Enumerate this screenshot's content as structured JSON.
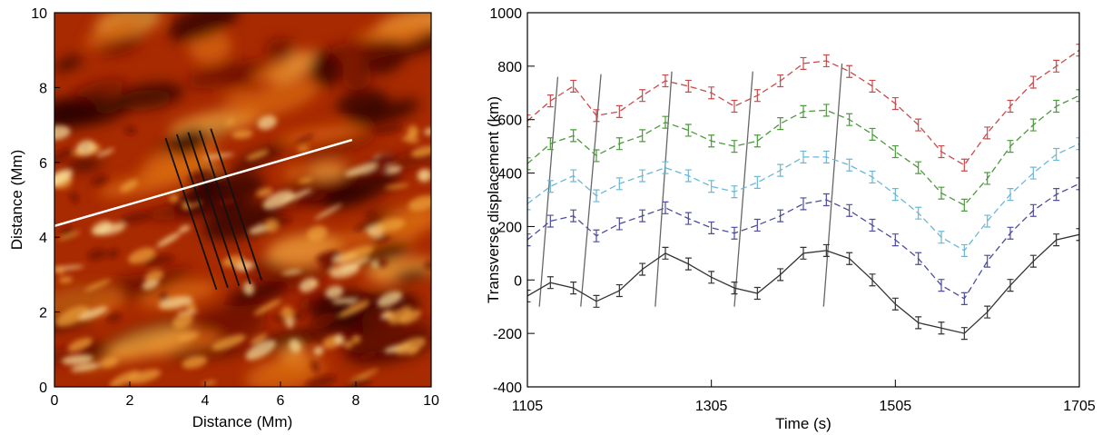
{
  "chart_data": [
    {
      "type": "heatmap",
      "xlabel": "Distance (Mm)",
      "ylabel": "Distance (Mm)",
      "xlim": [
        0,
        10
      ],
      "ylim": [
        0,
        10
      ],
      "xticks": [
        "0",
        "2",
        "4",
        "6",
        "8",
        "10"
      ],
      "yticks": [
        "0",
        "2",
        "4",
        "6",
        "8",
        "10"
      ],
      "colormap": [
        "#2a0000",
        "#6e0a00",
        "#a82a00",
        "#d86a10",
        "#f0a53c",
        "#fbe4a0"
      ],
      "annotations": {
        "white_line": {
          "x": [
            0.0,
            7.9
          ],
          "y": [
            4.3,
            6.6
          ],
          "color": "#ffffff"
        },
        "black_slits": [
          {
            "x": [
              2.95,
              4.3
            ],
            "y": [
              6.65,
              2.6
            ]
          },
          {
            "x": [
              3.25,
              4.6
            ],
            "y": [
              6.75,
              2.65
            ]
          },
          {
            "x": [
              3.55,
              4.9
            ],
            "y": [
              6.8,
              2.7
            ]
          },
          {
            "x": [
              3.85,
              5.2
            ],
            "y": [
              6.85,
              2.75
            ]
          },
          {
            "x": [
              4.15,
              5.5
            ],
            "y": [
              6.9,
              2.85
            ]
          }
        ]
      }
    },
    {
      "type": "line",
      "xlabel": "Time (s)",
      "ylabel": "Transverse displacement (km)",
      "xlim": [
        1105,
        1705
      ],
      "ylim": [
        -400,
        1000
      ],
      "xticks": [
        "1105",
        "1305",
        "1505",
        "1705"
      ],
      "yticks": [
        "-400",
        "-200",
        "0",
        "200",
        "400",
        "600",
        "800",
        "1000"
      ],
      "error_bar_km": 22,
      "x": [
        1105,
        1130,
        1155,
        1180,
        1205,
        1230,
        1255,
        1280,
        1305,
        1330,
        1355,
        1380,
        1405,
        1430,
        1455,
        1480,
        1505,
        1530,
        1555,
        1580,
        1605,
        1630,
        1655,
        1680,
        1705
      ],
      "series": [
        {
          "color": "#c94a4a",
          "values": [
            595,
            670,
            725,
            615,
            630,
            690,
            745,
            725,
            700,
            650,
            690,
            745,
            810,
            820,
            780,
            725,
            660,
            580,
            480,
            430,
            550,
            650,
            740,
            800,
            860
          ]
        },
        {
          "color": "#4c9a3c",
          "values": [
            435,
            510,
            540,
            465,
            510,
            540,
            590,
            560,
            520,
            500,
            520,
            585,
            630,
            635,
            600,
            545,
            480,
            420,
            325,
            280,
            380,
            500,
            580,
            650,
            690
          ]
        },
        {
          "color": "#6bb8d6",
          "values": [
            285,
            350,
            390,
            315,
            360,
            390,
            420,
            390,
            350,
            330,
            365,
            410,
            460,
            460,
            430,
            385,
            320,
            250,
            160,
            110,
            220,
            320,
            400,
            470,
            510
          ]
        },
        {
          "color": "#4d4d9a",
          "values": [
            150,
            220,
            240,
            165,
            210,
            240,
            270,
            230,
            195,
            175,
            205,
            240,
            285,
            300,
            260,
            205,
            150,
            80,
            -20,
            -70,
            70,
            175,
            260,
            320,
            360
          ]
        },
        {
          "color": "#333333",
          "values": [
            -60,
            -10,
            -30,
            -80,
            -40,
            40,
            100,
            60,
            10,
            -30,
            -50,
            20,
            100,
            110,
            80,
            0,
            -90,
            -160,
            -180,
            -200,
            -120,
            -20,
            70,
            150,
            170
          ]
        }
      ],
      "annotations": {
        "grey_lines": [
          {
            "x": [
              1118,
              1138
            ],
            "y": [
              -100,
              760
            ]
          },
          {
            "x": [
              1163,
              1185
            ],
            "y": [
              -100,
              770
            ]
          },
          {
            "x": [
              1244,
              1262
            ],
            "y": [
              -100,
              780
            ]
          },
          {
            "x": [
              1330,
              1350
            ],
            "y": [
              -100,
              780
            ]
          },
          {
            "x": [
              1427,
              1447
            ],
            "y": [
              -100,
              810
            ]
          }
        ]
      }
    }
  ]
}
